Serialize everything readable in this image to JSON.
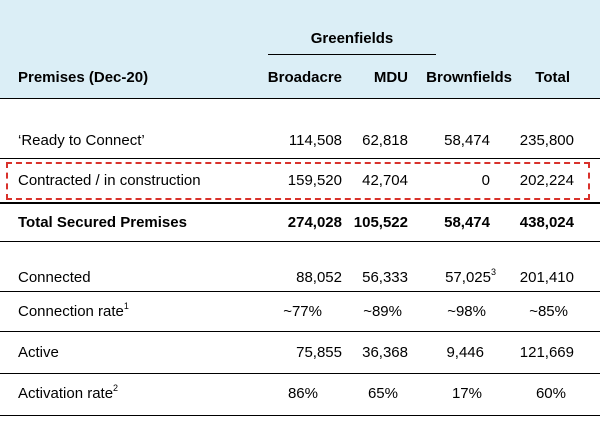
{
  "header": {
    "group_label": "Greenfields",
    "row_label": "Premises (Dec-20)",
    "columns": [
      "Broadacre",
      "MDU",
      "Brownfields",
      "Total"
    ]
  },
  "rows": [
    {
      "label": "‘Ready to Connect’",
      "values": [
        "114,508",
        "62,818",
        "58,474",
        "235,800"
      ]
    },
    {
      "label": "Contracted / in construction",
      "values": [
        "159,520",
        "42,704",
        "0",
        "202,224"
      ],
      "highlighted": true
    },
    {
      "label": "Total Secured Premises",
      "values": [
        "274,028",
        "105,522",
        "58,474",
        "438,024"
      ],
      "bold": true
    },
    {
      "label": "Connected",
      "values": [
        "88,052",
        "56,333",
        "57,025",
        "201,410"
      ],
      "footnotes": {
        "brownfields": "3"
      }
    },
    {
      "label": "Connection rate",
      "label_footnote": "1",
      "values": [
        "~77%",
        "~89%",
        "~98%",
        "~85%"
      ]
    },
    {
      "label": "Active",
      "values": [
        "75,855",
        "36,368",
        "9,446",
        "121,669"
      ]
    },
    {
      "label": "Activation rate",
      "label_footnote": "2",
      "values": [
        "86%",
        "65%",
        "17%",
        "60%"
      ]
    }
  ],
  "colors": {
    "header_background": "#dbeef6",
    "highlight_border": "#d9312b"
  }
}
